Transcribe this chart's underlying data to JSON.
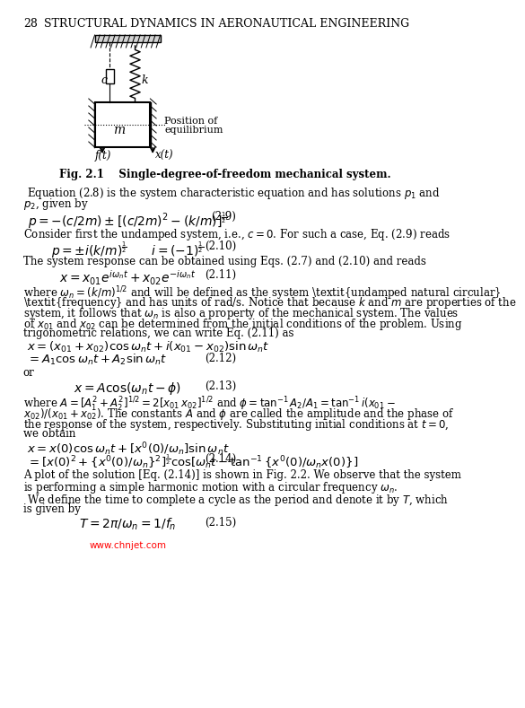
{
  "page_number": "28",
  "header": "STRUCTURAL DYNAMICS IN AERONAUTICAL ENGINEERING",
  "fig_caption": "Fig. 2.1    Single-degree-of-freedom mechanical system.",
  "watermark": "www.chnjet.com",
  "background_color": "#ffffff",
  "text_color": "#000000",
  "body_text_fontsize": 8.5,
  "eq_fontsize": 9.5,
  "paragraphs": [
    "Equation (2.8) is the system characteristic equation and has solutions $p_1$ and $p_2$, given by",
    "Consider first the undamped system, i.e., $c = 0$. For such a case, Eq. (2.9) reads",
    "The system response can be obtained using Eqs. (2.7) and (2.10) and reads",
    "where $\\omega_n = (k/m)^{1/2}$ and will be defined as the system \\textit{undamped natural circular frequency} and has units of rad/s. Notice that because $k$ and $m$ are properties of the system, it follows that $\\omega_n$ is also a property of the mechanical system. The values of $x_{01}$ and $x_{02}$ can be determined from the initial conditions of the problem. Using trigonometric relations, we can write Eq. (2.11) as",
    "or",
    "where $A = [A_1^2 + A_2^2]^{1/2} = 2[x_{01}\\, x_{02}]^{1/2}$ and $\\phi = \\tan^{-1} A_2/A_1 = \\tan^{-1} i(x_{01} - x_{02})/(x_{01} + x_{02})$. The constants $A$ and $\\phi$ are called the amplitude and the phase of the response of the system, respectively. Substituting initial conditions at $t = 0$, we obtain",
    "A plot of the solution [Eq. (2.14)] is shown in Fig. 2.2. We observe that the system is performing a simple harmonic motion with a circular frequency $\\omega_n$.",
    "    We define the time to complete a cycle as the period and denote it by $T$, which is given by"
  ]
}
